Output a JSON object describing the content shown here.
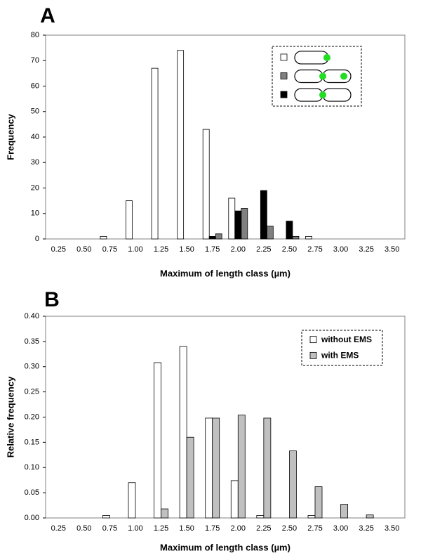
{
  "chart_data": [
    {
      "type": "bar",
      "panel_label": "A",
      "ylabel": "Frequency",
      "xlabel": "Maximum of length class (µm)",
      "categories": [
        "0.25",
        "0.50",
        "0.75",
        "1.00",
        "1.25",
        "1.50",
        "1.75",
        "2.00",
        "2.25",
        "2.50",
        "2.75",
        "3.00",
        "3.25",
        "3.50"
      ],
      "series": [
        {
          "color": "#ffffff",
          "values": [
            0,
            0,
            1,
            15,
            67,
            74,
            43,
            16,
            0,
            0,
            1,
            0,
            0,
            0
          ]
        },
        {
          "color": "#808080",
          "values": [
            0,
            0,
            0,
            0,
            0,
            0,
            2,
            12,
            5,
            1,
            0,
            0,
            0,
            0
          ]
        },
        {
          "color": "#000000",
          "values": [
            0,
            0,
            0,
            0,
            0,
            0,
            1,
            11,
            19,
            7,
            0,
            0,
            0,
            0
          ]
        }
      ],
      "ylim": [
        0,
        80
      ],
      "yticks": [
        0,
        10,
        20,
        30,
        40,
        50,
        60,
        70,
        80
      ],
      "grid": false,
      "legend": "upper right"
    },
    {
      "type": "bar",
      "panel_label": "B",
      "ylabel": "Relative frequency",
      "xlabel": "Maximum of length class (µm)",
      "categories": [
        "0.25",
        "0.50",
        "0.75",
        "1.00",
        "1.25",
        "1.50",
        "1.75",
        "2.00",
        "2.25",
        "2.50",
        "2.75",
        "3.00",
        "3.25",
        "3.50"
      ],
      "series": [
        {
          "name": "without EMS",
          "color": "#ffffff",
          "values": [
            0,
            0,
            0.005,
            0.07,
            0.308,
            0.34,
            0.198,
            0.074,
            0.005,
            0,
            0.005,
            0,
            0,
            0
          ]
        },
        {
          "name": "with EMS",
          "color": "#c0c0c0",
          "values": [
            0,
            0,
            0,
            0,
            0.018,
            0.16,
            0.198,
            0.204,
            0.198,
            0.133,
            0.062,
            0.027,
            0.006,
            0
          ]
        }
      ],
      "ylim": [
        0,
        0.4
      ],
      "yticks": [
        {
          "value": 0,
          "label": "0.00"
        },
        0.05,
        {
          "value": 0.1,
          "label": "0.10"
        },
        0.15,
        {
          "value": 0.2,
          "label": "0.20"
        },
        0.25,
        {
          "value": 0.3,
          "label": "0.30"
        },
        0.35,
        {
          "value": 0.4,
          "label": "0.40"
        }
      ],
      "grid": false,
      "legend": "upper right"
    }
  ]
}
